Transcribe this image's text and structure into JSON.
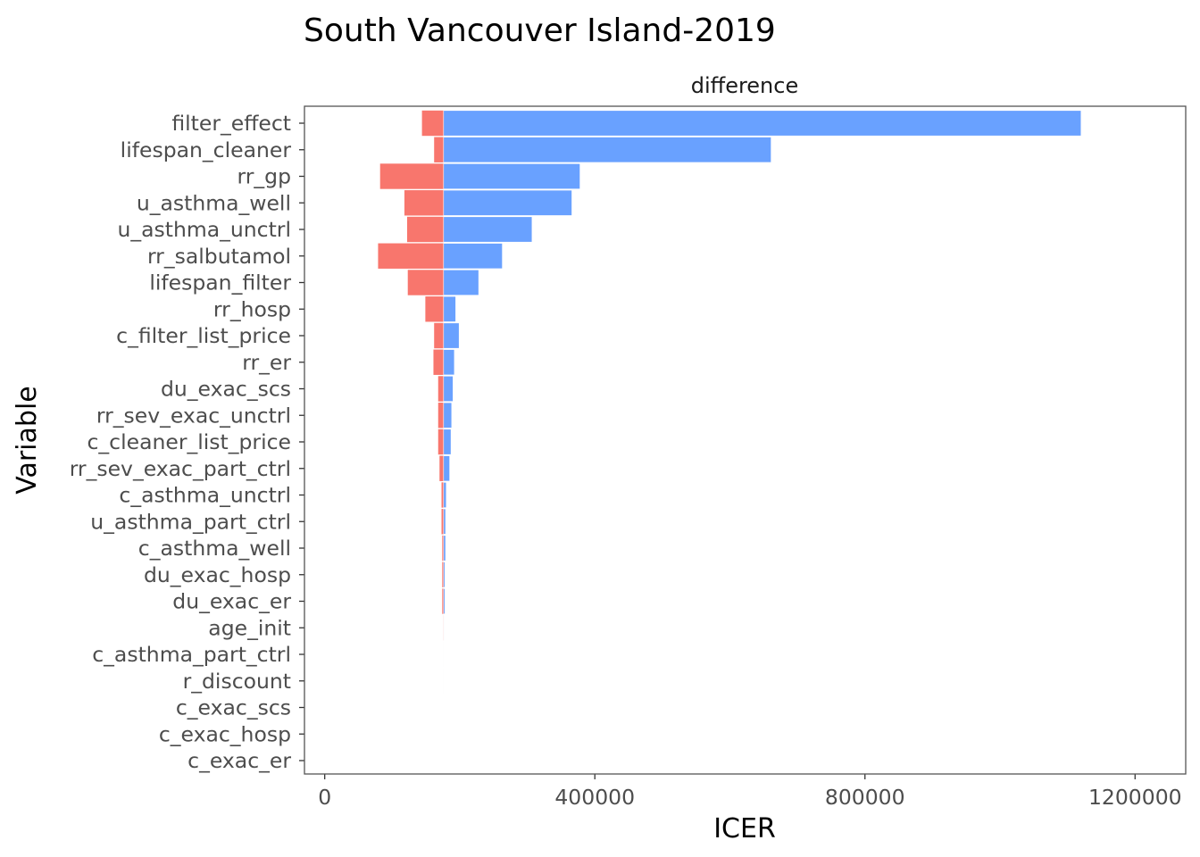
{
  "chart_data": {
    "type": "bar",
    "orientation": "horizontal",
    "layout": "tornado",
    "title": "South Vancouver Island-2019",
    "facet_label": "difference",
    "xlabel": "ICER",
    "ylabel": "Variable",
    "xlim": [
      -30000,
      1275000
    ],
    "x_ticks": [
      0,
      400000,
      800000,
      1200000
    ],
    "x_tick_labels": [
      "0",
      "400000",
      "800000",
      "1200000"
    ],
    "base_value": 176000,
    "grid": false,
    "legend": "none",
    "colors": {
      "low": "#F8766D",
      "high": "#619CFF",
      "panel_border": "#555555",
      "axis_text": "#4D4D4D",
      "title": "#000000"
    },
    "categories": [
      "filter_effect",
      "lifespan_cleaner",
      "rr_gp",
      "u_asthma_well",
      "u_asthma_unctrl",
      "rr_salbutamol",
      "lifespan_filter",
      "rr_hosp",
      "c_filter_list_price",
      "rr_er",
      "du_exac_scs",
      "rr_sev_exac_unctrl",
      "c_cleaner_list_price",
      "rr_sev_exac_part_ctrl",
      "c_asthma_unctrl",
      "u_asthma_part_ctrl",
      "c_asthma_well",
      "du_exac_hosp",
      "du_exac_er",
      "age_init",
      "c_asthma_part_ctrl",
      "r_discount",
      "c_exac_scs",
      "c_exac_hosp",
      "c_exac_er"
    ],
    "series": [
      {
        "name": "low",
        "values": [
          144000,
          162000,
          82000,
          118000,
          122000,
          79000,
          123000,
          149000,
          162000,
          161000,
          168000,
          168000,
          168000,
          170000,
          173000,
          173000,
          174000,
          174000,
          174000,
          175500,
          175800,
          175900,
          176000,
          176000,
          176000
        ]
      },
      {
        "name": "high",
        "values": [
          1120000,
          661000,
          378000,
          366000,
          307000,
          263000,
          228000,
          194000,
          199000,
          192000,
          190000,
          188000,
          187000,
          185000,
          180000,
          179000,
          179000,
          178000,
          178000,
          176400,
          176200,
          176100,
          176000,
          176000,
          176000
        ]
      }
    ]
  }
}
